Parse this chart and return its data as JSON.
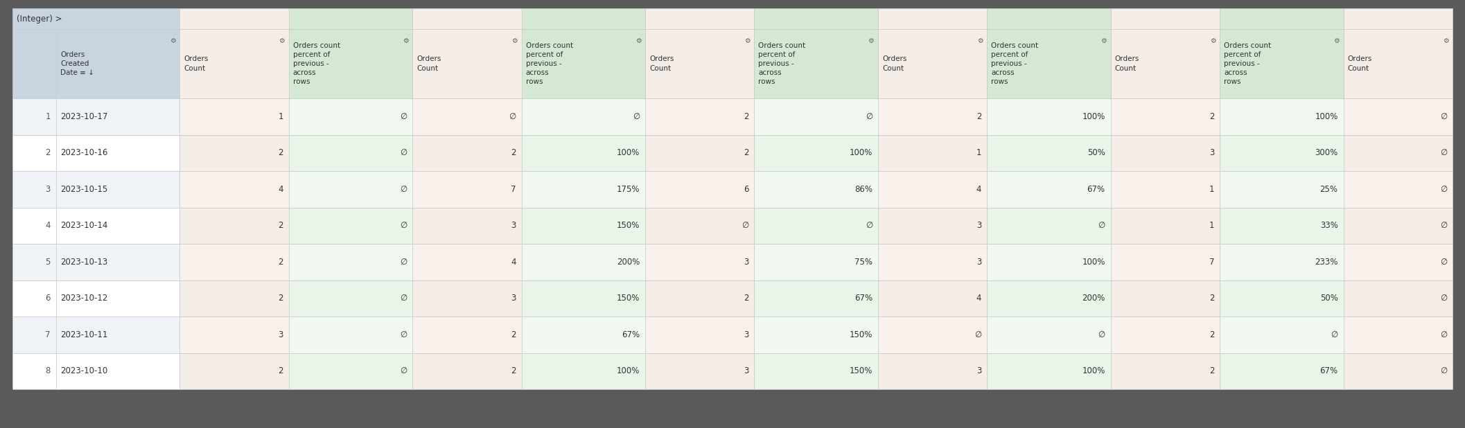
{
  "background_color": "#5a5a5a",
  "table_bg": "#ffffff",
  "header_row1_bg": "#c8d4e0",
  "header_orders_count_bg": "#e8f0e8",
  "header_orders_created_bg": "#c8d4e0",
  "header_percent_bg": "#d4e8d4",
  "col_orders_count_bg_odd": "#f5ede8",
  "col_orders_count_bg_even": "#f5ede8",
  "col_percent_bg_odd": "#eaf5ea",
  "col_percent_bg_even": "#eaf5ea",
  "row_odd_bg": "#f9f9f9",
  "row_even_bg": "#ffffff",
  "title_row": "(Integer) >",
  "col_headers": [
    "Orders\nCreated\nDate ≡ ↓",
    "Orders\nCount",
    "Orders count\npercent of\nprevious -\nacross\nrows",
    "Orders\nCount",
    "Orders count\npercent of\nprevious -\nacross\nrows",
    "Orders\nCount",
    "Orders count\npercent of\nprevious -\nacross\nrows",
    "Orders\nCount",
    "Orders count\npercent of\nprevious -\nacross\nrows",
    "Orders\nCount",
    "Orders count\npercent of\nprevious -\nacross\nrows",
    "Orders\nCount"
  ],
  "rows": [
    [
      1,
      "2023-10-17",
      1,
      "∅",
      "∅",
      "∅",
      2,
      "∅",
      2,
      "100%",
      2,
      "100%",
      "∅"
    ],
    [
      2,
      "2023-10-16",
      2,
      "∅",
      2,
      "100%",
      2,
      "100%",
      1,
      "50%",
      3,
      "300%",
      "∅"
    ],
    [
      3,
      "2023-10-15",
      4,
      "∅",
      7,
      "175%",
      6,
      "86%",
      4,
      "67%",
      1,
      "25%",
      "∅"
    ],
    [
      4,
      "2023-10-14",
      2,
      "∅",
      3,
      "150%",
      "∅",
      "∅",
      3,
      "∅",
      1,
      "33%",
      "∅"
    ],
    [
      5,
      "2023-10-13",
      2,
      "∅",
      4,
      "200%",
      3,
      "75%",
      3,
      "100%",
      7,
      "233%",
      "∅"
    ],
    [
      6,
      "2023-10-12",
      2,
      "∅",
      3,
      "150%",
      2,
      "67%",
      4,
      "200%",
      2,
      "50%",
      "∅"
    ],
    [
      7,
      "2023-10-11",
      3,
      "∅",
      2,
      "67%",
      3,
      "150%",
      "∅",
      "∅",
      2,
      "∅",
      "∅"
    ],
    [
      8,
      "2023-10-10",
      2,
      "∅",
      2,
      "100%",
      3,
      "150%",
      3,
      "100%",
      2,
      "67%",
      "∅"
    ]
  ],
  "gear_symbol": "⚙",
  "null_symbol": "∅",
  "font_size_header": 7.5,
  "font_size_data": 8.5,
  "font_size_title": 8.5
}
